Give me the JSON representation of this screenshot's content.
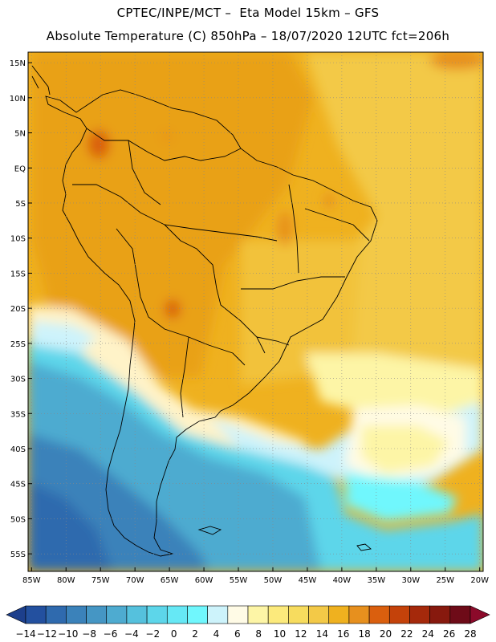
{
  "header": {
    "line1": "CPTEC/INPE/MCT –  Eta Model 15km – GFS",
    "line2": "Absolute Temperature (C) 850hPa – 18/07/2020 12UTC fct=206h"
  },
  "map": {
    "lat_labels": [
      "15N",
      "10N",
      "5N",
      "EQ",
      "5S",
      "10S",
      "15S",
      "20S",
      "25S",
      "30S",
      "35S",
      "40S",
      "45S",
      "50S",
      "55S"
    ],
    "lon_labels": [
      "85W",
      "80W",
      "75W",
      "70W",
      "65W",
      "60W",
      "55W",
      "50W",
      "45W",
      "40W",
      "35W",
      "30W",
      "25W",
      "20W"
    ],
    "lat_range": [
      -57.5,
      16.5
    ],
    "lon_range": [
      -85.5,
      -19.5
    ],
    "grid": "dotted"
  },
  "colorbar": {
    "labels": [
      "-14",
      "-12",
      "-10",
      "-8",
      "-6",
      "-4",
      "-2",
      "0",
      "2",
      "4",
      "6",
      "8",
      "10",
      "12",
      "14",
      "16",
      "18",
      "20",
      "22",
      "24",
      "26",
      "28"
    ],
    "colors": [
      "#1d3f8c",
      "#23509f",
      "#2f6aae",
      "#3b82ba",
      "#4596c4",
      "#4eabd0",
      "#55c1dd",
      "#5dd6ea",
      "#66e8f5",
      "#70f7fd",
      "#cdf3fb",
      "#fffbe6",
      "#fdf5a6",
      "#fcea7c",
      "#f7dc5e",
      "#f3c947",
      "#efb11f",
      "#e7901e",
      "#da5f0e",
      "#c4420a",
      "#a5290b",
      "#87190e",
      "#6e0b18",
      "#8b0a2a"
    ]
  }
}
